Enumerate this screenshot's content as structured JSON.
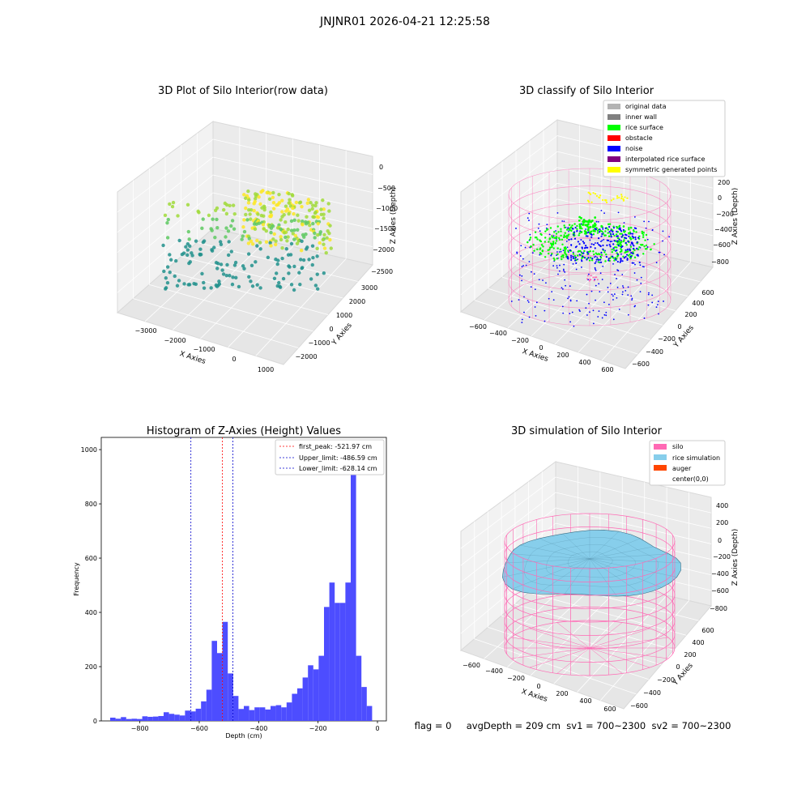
{
  "figure_title": "JNJNR01 2026-04-21 12:25:58",
  "colors": {
    "hist_bar": "#4d4dff",
    "first_peak": "#ff0000",
    "limit_line": "#0000cc",
    "silo": "#ff69b4",
    "rice": "#87ceeb",
    "auger": "#ff4500",
    "original": "#b3b3b3",
    "inner_wall": "#808080",
    "rice_surface": "#00ff00",
    "obstacle": "#ff0000",
    "noise": "#0000ff",
    "interp": "#800080",
    "sym": "#ffff00"
  },
  "panels": {
    "raw": {
      "title": "3D Plot of Silo Interior(row data)",
      "xlabel": "X Axies",
      "ylabel": "Y Axies",
      "zlabel": "Z Axies (Depth)",
      "xticks": [
        "−3000",
        "−2000",
        "−1000",
        "0",
        "1000"
      ],
      "yticks": [
        "−2000",
        "−1000",
        "0",
        "1000",
        "2000",
        "3000"
      ],
      "zticks": [
        "0",
        "−500",
        "−1000",
        "−1500",
        "−2000",
        "−2500"
      ]
    },
    "classify": {
      "title": "3D classify of Silo Interior",
      "xlabel": "X Axies",
      "ylabel": "Y Axies",
      "zlabel": "Z Axies (Depth)",
      "xticks": [
        "−600",
        "−400",
        "−200",
        "0",
        "200",
        "400",
        "600"
      ],
      "yticks": [
        "−600",
        "−400",
        "−200",
        "0",
        "200",
        "400",
        "600"
      ],
      "zticks": [
        "200",
        "0",
        "−200",
        "−400",
        "−600",
        "−800"
      ],
      "legend": [
        {
          "label": "original data",
          "color": "#b3b3b3"
        },
        {
          "label": "inner wall",
          "color": "#808080"
        },
        {
          "label": "rice surface",
          "color": "#00ff00"
        },
        {
          "label": "obstacle",
          "color": "#ff0000"
        },
        {
          "label": "noise",
          "color": "#0000ff"
        },
        {
          "label": "interpolated rice surface",
          "color": "#800080"
        },
        {
          "label": "symmetric generated points",
          "color": "#ffff00"
        }
      ]
    },
    "simulation": {
      "title": "3D simulation of Silo Interior",
      "xlabel": "X Axies",
      "ylabel": "Y Axies",
      "zlabel": "Z Axies (Depth)",
      "xticks": [
        "−600",
        "−400",
        "−200",
        "0",
        "200",
        "400",
        "600"
      ],
      "yticks": [
        "−600",
        "−400",
        "−200",
        "0",
        "200",
        "400",
        "600"
      ],
      "zticks": [
        "400",
        "200",
        "0",
        "−200",
        "−400",
        "−600",
        "−800"
      ],
      "legend": [
        {
          "label": "silo",
          "color": "#ff69b4"
        },
        {
          "label": "rice simulation",
          "color": "#87ceeb"
        },
        {
          "label": "auger",
          "color": "#ff4500"
        },
        {
          "label": "center(0,0)",
          "color": ""
        }
      ]
    }
  },
  "status_line": "flag = 0     avgDepth = 209 cm  sv1 = 700~2300  sv2 = 700~2300",
  "chart_data": [
    {
      "type": "scatter",
      "title": "3D Plot of Silo Interior(row data)",
      "projection": "3d",
      "xlabel": "X Axies",
      "ylabel": "Y Axies",
      "zlabel": "Z Axies (Depth)",
      "xlim": [
        -3600,
        1300
      ],
      "ylim": [
        -2600,
        3300
      ],
      "zlim": [
        -2800,
        100
      ],
      "colormap": "viridis"
    },
    {
      "type": "scatter",
      "title": "3D classify of Silo Interior",
      "projection": "3d",
      "xlabel": "X Axies",
      "ylabel": "Y Axies",
      "zlabel": "Z Axies (Depth)",
      "xlim": [
        -650,
        650
      ],
      "ylim": [
        -650,
        650
      ],
      "zlim": [
        -900,
        300
      ],
      "series": [
        {
          "name": "original data"
        },
        {
          "name": "inner wall"
        },
        {
          "name": "rice surface"
        },
        {
          "name": "obstacle"
        },
        {
          "name": "noise"
        },
        {
          "name": "interpolated rice surface"
        },
        {
          "name": "symmetric generated points"
        }
      ]
    },
    {
      "type": "bar",
      "title": "Histogram of Z-Axies (Height) Values",
      "xlabel": "Depth (cm)",
      "ylabel": "Frequency",
      "xlim": [
        -930,
        30
      ],
      "ylim": [
        0,
        1045
      ],
      "xticks": [
        -800,
        -600,
        -400,
        -200,
        0
      ],
      "xtick_labels": [
        "−800",
        "−600",
        "−400",
        "−200",
        "0"
      ],
      "yticks": [
        0,
        200,
        400,
        600,
        800,
        1000
      ],
      "bin_width": 18,
      "bins_start": [
        -900,
        -882,
        -864,
        -846,
        -828,
        -810,
        -792,
        -774,
        -756,
        -738,
        -720,
        -702,
        -684,
        -666,
        -648,
        -630,
        -612,
        -594,
        -576,
        -558,
        -540,
        -522,
        -504,
        -486,
        -468,
        -450,
        -432,
        -414,
        -396,
        -378,
        -360,
        -342,
        -324,
        -306,
        -288,
        -270,
        -252,
        -234,
        -216,
        -198,
        -180,
        -162,
        -144,
        -126,
        -108,
        -90,
        -72,
        -54,
        -36,
        -18
      ],
      "values": [
        12,
        8,
        14,
        7,
        8,
        7,
        17,
        15,
        16,
        18,
        32,
        26,
        23,
        20,
        38,
        35,
        45,
        72,
        115,
        295,
        250,
        365,
        175,
        92,
        44,
        55,
        40,
        50,
        50,
        42,
        55,
        58,
        50,
        68,
        100,
        120,
        160,
        205,
        190,
        240,
        420,
        510,
        435,
        435,
        510,
        985,
        240,
        125,
        55,
        0
      ],
      "vlines": [
        {
          "label": "first_peak: -521.97 cm",
          "x": -521.97,
          "color": "#ff0000"
        },
        {
          "label": "Upper_limit: -486.59 cm",
          "x": -486.59,
          "color": "#0000cc"
        },
        {
          "label": "Lower_limit: -628.14 cm",
          "x": -628.14,
          "color": "#0000cc"
        }
      ],
      "legend_position": "top-right"
    },
    {
      "type": "surface",
      "title": "3D simulation of Silo Interior",
      "projection": "3d",
      "xlabel": "X Axies",
      "ylabel": "Y Axies",
      "zlabel": "Z Axies (Depth)",
      "xlim": [
        -650,
        650
      ],
      "ylim": [
        -650,
        650
      ],
      "zlim": [
        -900,
        450
      ],
      "series": [
        {
          "name": "silo"
        },
        {
          "name": "rice simulation"
        },
        {
          "name": "auger"
        },
        {
          "name": "center(0,0)"
        }
      ]
    }
  ]
}
